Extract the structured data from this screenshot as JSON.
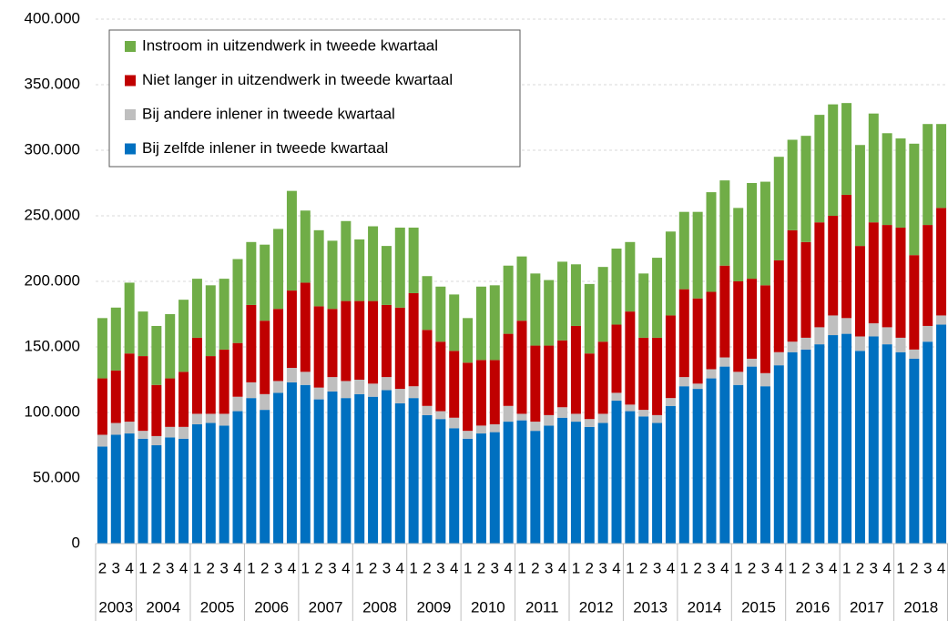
{
  "chart_data": {
    "type": "stacked-bar",
    "groups": [
      {
        "label": "2003",
        "categories": [
          "2",
          "3",
          "4"
        ]
      },
      {
        "label": "2004",
        "categories": [
          "1",
          "2",
          "3",
          "4"
        ]
      },
      {
        "label": "2005",
        "categories": [
          "1",
          "2",
          "3",
          "4"
        ]
      },
      {
        "label": "2006",
        "categories": [
          "1",
          "2",
          "3",
          "4"
        ]
      },
      {
        "label": "2007",
        "categories": [
          "1",
          "2",
          "3",
          "4"
        ]
      },
      {
        "label": "2008",
        "categories": [
          "1",
          "2",
          "3",
          "4"
        ]
      },
      {
        "label": "2009",
        "categories": [
          "1",
          "2",
          "3",
          "4"
        ]
      },
      {
        "label": "2010",
        "categories": [
          "1",
          "2",
          "3",
          "4"
        ]
      },
      {
        "label": "2011",
        "categories": [
          "1",
          "2",
          "3",
          "4"
        ]
      },
      {
        "label": "2012",
        "categories": [
          "1",
          "2",
          "3",
          "4"
        ]
      },
      {
        "label": "2013",
        "categories": [
          "1",
          "2",
          "3",
          "4"
        ]
      },
      {
        "label": "2014",
        "categories": [
          "1",
          "2",
          "3",
          "4"
        ]
      },
      {
        "label": "2015",
        "categories": [
          "1",
          "2",
          "3",
          "4"
        ]
      },
      {
        "label": "2016",
        "categories": [
          "1",
          "2",
          "3",
          "4"
        ]
      },
      {
        "label": "2017",
        "categories": [
          "1",
          "2",
          "3",
          "4"
        ]
      },
      {
        "label": "2018",
        "categories": [
          "1",
          "2",
          "3",
          "4"
        ]
      }
    ],
    "series": [
      {
        "name": "Bij zelfde inlener in tweede kwartaal",
        "color": "#0070c0",
        "values": [
          74000,
          83000,
          84000,
          80000,
          75000,
          81000,
          80000,
          91000,
          92000,
          90000,
          101000,
          111000,
          102000,
          115000,
          123000,
          121000,
          110000,
          116000,
          111000,
          114000,
          112000,
          117000,
          107000,
          111000,
          98000,
          95000,
          88000,
          80000,
          84000,
          85000,
          93000,
          94000,
          86000,
          90000,
          96000,
          93000,
          89000,
          92000,
          109000,
          101000,
          97000,
          92000,
          105000,
          120000,
          118000,
          126000,
          135000,
          121000,
          135000,
          120000,
          136000,
          146000,
          148000,
          152000,
          159000,
          160000,
          147000,
          158000,
          152000,
          146000,
          141000,
          154000,
          167000
        ]
      },
      {
        "name": "Bij andere inlener in tweede kwartaal",
        "color": "#bfbfbf",
        "values": [
          9000,
          9000,
          9000,
          6000,
          7000,
          8000,
          9000,
          8000,
          7000,
          9000,
          11000,
          12000,
          12000,
          9000,
          11000,
          10000,
          9000,
          11000,
          13000,
          11000,
          10000,
          10000,
          11000,
          9000,
          7000,
          6000,
          8000,
          6000,
          6000,
          6000,
          12000,
          5000,
          7000,
          8000,
          8000,
          6000,
          6000,
          7000,
          6000,
          5000,
          5000,
          6000,
          6000,
          7000,
          4000,
          7000,
          7000,
          10000,
          6000,
          10000,
          10000,
          8000,
          9000,
          13000,
          15000,
          12000,
          11000,
          10000,
          13000,
          11000,
          7000,
          12000,
          7000
        ]
      },
      {
        "name": "Niet langer in uitzendwerk in tweede kwartaal",
        "color": "#c00000",
        "values": [
          43000,
          40000,
          52000,
          57000,
          39000,
          37000,
          42000,
          58000,
          44000,
          49000,
          41000,
          59000,
          56000,
          55000,
          59000,
          68000,
          62000,
          52000,
          61000,
          60000,
          63000,
          55000,
          62000,
          71000,
          58000,
          53000,
          51000,
          52000,
          50000,
          49000,
          55000,
          71000,
          58000,
          53000,
          51000,
          67000,
          50000,
          55000,
          52000,
          71000,
          55000,
          59000,
          63000,
          67000,
          65000,
          59000,
          70000,
          69000,
          61000,
          67000,
          70000,
          85000,
          73000,
          80000,
          76000,
          94000,
          69000,
          77000,
          78000,
          84000,
          72000,
          77000,
          82000
        ]
      },
      {
        "name": "Instroom in uitzendwerk in tweede kwartaal",
        "color": "#70ad47",
        "values": [
          46000,
          48000,
          54000,
          34000,
          45000,
          49000,
          55000,
          45000,
          54000,
          54000,
          64000,
          48000,
          58000,
          61000,
          76000,
          55000,
          58000,
          52000,
          61000,
          47000,
          57000,
          45000,
          61000,
          50000,
          41000,
          42000,
          43000,
          34000,
          56000,
          57000,
          52000,
          49000,
          55000,
          50000,
          60000,
          47000,
          53000,
          57000,
          58000,
          53000,
          49000,
          61000,
          64000,
          59000,
          66000,
          76000,
          65000,
          56000,
          73000,
          79000,
          79000,
          69000,
          81000,
          82000,
          85000,
          70000,
          77000,
          83000,
          70000,
          68000,
          85000,
          77000,
          64000
        ]
      }
    ],
    "ylim": [
      0,
      400000
    ],
    "yticks": [
      0,
      {
        "value": 50000,
        "label": "50.000"
      },
      {
        "value": 100000,
        "label": "100.000"
      },
      {
        "value": 150000,
        "label": "150.000"
      },
      {
        "value": 200000,
        "label": "200.000"
      },
      {
        "value": 250000,
        "label": "250.000"
      },
      {
        "value": 300000,
        "label": "300.000"
      },
      {
        "value": 350000,
        "label": "350.000"
      },
      {
        "value": 400000,
        "label": "400.000"
      }
    ],
    "grid": true,
    "legend": "upper-left"
  }
}
